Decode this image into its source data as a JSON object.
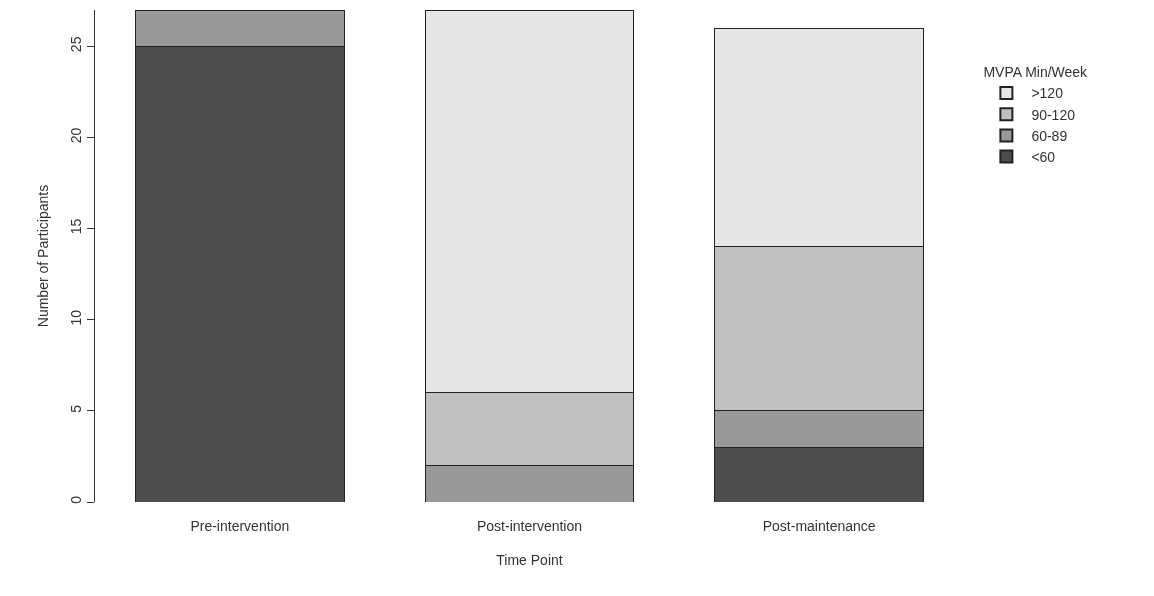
{
  "chart_data": {
    "type": "bar",
    "stacked": true,
    "xlabel": "Time Point",
    "ylabel": "Number of Participants",
    "legend_title": "MVPA Min/Week",
    "categories": [
      "Pre-intervention",
      "Post-intervention",
      "Post-maintenance"
    ],
    "series": [
      {
        "name": "<60",
        "color": "#4d4d4d",
        "values": [
          25,
          0,
          3
        ]
      },
      {
        "name": "60-89",
        "color": "#999999",
        "values": [
          2,
          2,
          2
        ]
      },
      {
        "name": "90-120",
        "color": "#c0c0c0",
        "values": [
          0,
          4,
          9
        ]
      },
      {
        "name": ">120",
        "color": "#e6e6e6",
        "values": [
          0,
          21,
          12
        ]
      }
    ],
    "ylim": [
      0,
      27
    ],
    "yticks": [
      0,
      5,
      10,
      15,
      20,
      25
    ],
    "grid": false,
    "legend": "right"
  }
}
